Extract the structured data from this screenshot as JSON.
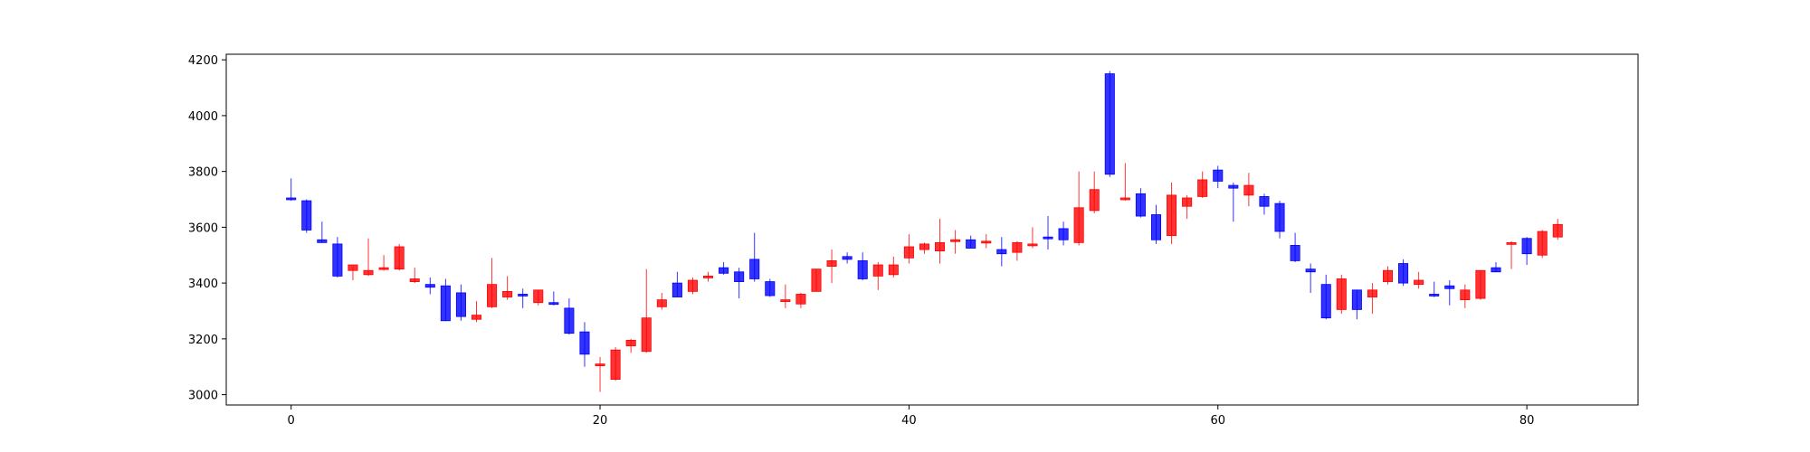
{
  "chart_data": {
    "type": "candlestick",
    "title": "",
    "xlabel": "",
    "ylabel": "",
    "xlim": [
      -4.2,
      87.2
    ],
    "ylim": [
      2963,
      4220
    ],
    "x_ticks": [
      0,
      20,
      40,
      60,
      80
    ],
    "y_ticks": [
      3000,
      3200,
      3400,
      3600,
      3800,
      4000,
      4200
    ],
    "grid": false,
    "up_color": "#ff0000",
    "down_color": "#0000ff",
    "x": [
      0,
      1,
      2,
      3,
      4,
      5,
      6,
      7,
      8,
      9,
      10,
      11,
      12,
      13,
      14,
      15,
      16,
      17,
      18,
      19,
      20,
      21,
      22,
      23,
      24,
      25,
      26,
      27,
      28,
      29,
      30,
      31,
      32,
      33,
      34,
      35,
      36,
      37,
      38,
      39,
      40,
      41,
      42,
      43,
      44,
      45,
      46,
      47,
      48,
      49,
      50,
      51,
      52,
      53,
      54,
      55,
      56,
      57,
      58,
      59,
      60,
      61,
      62,
      63,
      64,
      65,
      66,
      67,
      68,
      69,
      70,
      71,
      72,
      73,
      74,
      75,
      76,
      77,
      78,
      79,
      80,
      81,
      82
    ],
    "open": [
      3705,
      3695,
      3555,
      3540,
      3445,
      3430,
      3450,
      3450,
      3405,
      3395,
      3390,
      3365,
      3270,
      3315,
      3350,
      3360,
      3330,
      3330,
      3310,
      3225,
      3110,
      3055,
      3175,
      3155,
      3315,
      3400,
      3370,
      3420,
      3455,
      3440,
      3485,
      3405,
      3335,
      3325,
      3370,
      3460,
      3495,
      3480,
      3425,
      3430,
      3490,
      3520,
      3515,
      3550,
      3555,
      3545,
      3520,
      3510,
      3535,
      3565,
      3595,
      3545,
      3660,
      4150,
      3700,
      3720,
      3645,
      3570,
      3675,
      3710,
      3805,
      3750,
      3715,
      3710,
      3685,
      3535,
      3450,
      3395,
      3305,
      3375,
      3350,
      3405,
      3470,
      3395,
      3360,
      3390,
      3340,
      3345,
      3455,
      3545,
      3560,
      3500,
      3565
    ],
    "high": [
      3775,
      3700,
      3620,
      3565,
      3460,
      3560,
      3500,
      3540,
      3455,
      3420,
      3415,
      3395,
      3335,
      3490,
      3425,
      3380,
      3375,
      3370,
      3345,
      3260,
      3135,
      3170,
      3200,
      3450,
      3365,
      3440,
      3420,
      3440,
      3475,
      3455,
      3580,
      3415,
      3395,
      3365,
      3450,
      3520,
      3510,
      3510,
      3475,
      3495,
      3575,
      3545,
      3630,
      3590,
      3570,
      3575,
      3565,
      3550,
      3600,
      3640,
      3620,
      3800,
      3800,
      4160,
      3830,
      3740,
      3680,
      3760,
      3715,
      3800,
      3820,
      3760,
      3795,
      3720,
      3695,
      3580,
      3470,
      3430,
      3430,
      3375,
      3400,
      3460,
      3485,
      3440,
      3405,
      3410,
      3395,
      3445,
      3475,
      3550,
      3565,
      3590,
      3630
    ],
    "low": [
      3695,
      3580,
      3545,
      3420,
      3410,
      3425,
      3445,
      3445,
      3400,
      3360,
      3265,
      3265,
      3260,
      3310,
      3340,
      3310,
      3320,
      3320,
      3215,
      3100,
      3010,
      3050,
      3150,
      3150,
      3305,
      3350,
      3360,
      3405,
      3430,
      3345,
      3405,
      3350,
      3310,
      3310,
      3370,
      3400,
      3470,
      3410,
      3375,
      3420,
      3470,
      3505,
      3470,
      3505,
      3525,
      3525,
      3460,
      3480,
      3525,
      3520,
      3535,
      3535,
      3650,
      3780,
      3695,
      3635,
      3540,
      3540,
      3630,
      3705,
      3740,
      3620,
      3675,
      3645,
      3560,
      3475,
      3365,
      3270,
      3290,
      3270,
      3290,
      3395,
      3390,
      3380,
      3350,
      3320,
      3310,
      3340,
      3440,
      3450,
      3465,
      3490,
      3555
    ],
    "close": [
      3700,
      3590,
      3545,
      3425,
      3465,
      3445,
      3455,
      3530,
      3415,
      3385,
      3265,
      3280,
      3285,
      3395,
      3370,
      3355,
      3375,
      3325,
      3220,
      3145,
      3110,
      3160,
      3195,
      3275,
      3340,
      3350,
      3410,
      3425,
      3435,
      3405,
      3415,
      3355,
      3340,
      3360,
      3450,
      3480,
      3485,
      3415,
      3465,
      3465,
      3530,
      3540,
      3545,
      3555,
      3525,
      3550,
      3505,
      3545,
      3540,
      3560,
      3555,
      3670,
      3735,
      3790,
      3705,
      3640,
      3555,
      3715,
      3705,
      3770,
      3765,
      3740,
      3750,
      3675,
      3585,
      3480,
      3440,
      3275,
      3415,
      3305,
      3375,
      3445,
      3400,
      3410,
      3355,
      3380,
      3375,
      3445,
      3440,
      3545,
      3505,
      3585,
      3610
    ]
  }
}
